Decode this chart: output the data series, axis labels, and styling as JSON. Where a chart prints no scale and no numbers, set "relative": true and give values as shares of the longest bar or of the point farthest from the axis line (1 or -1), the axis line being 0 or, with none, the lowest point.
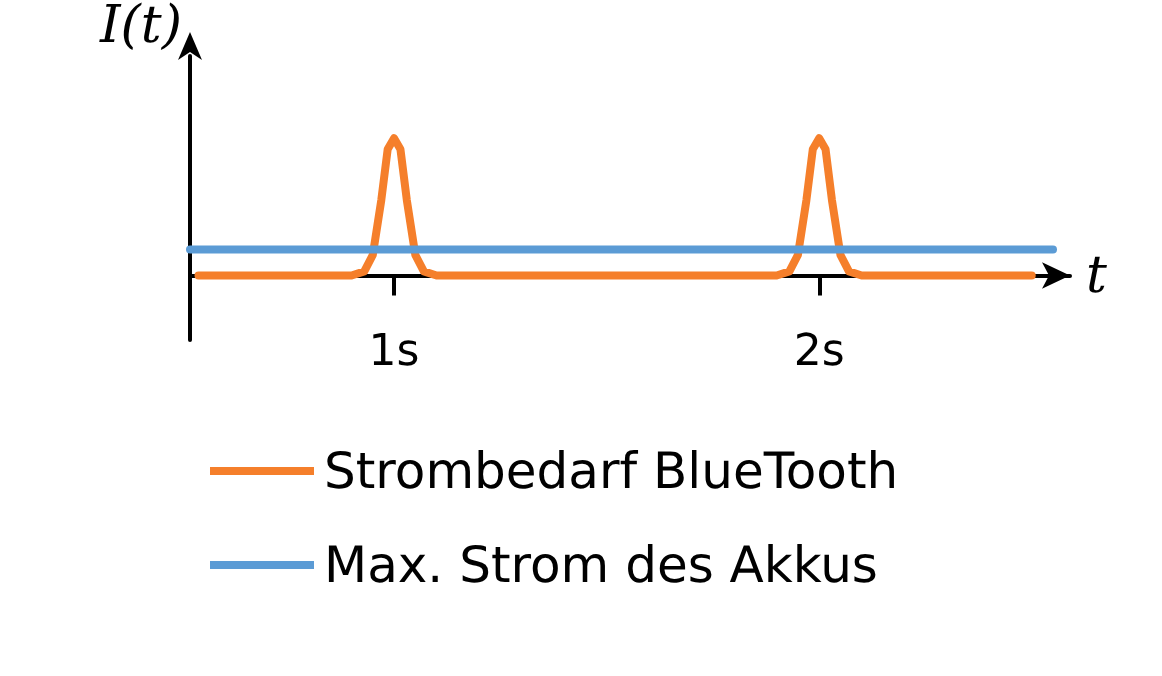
{
  "chart_data": {
    "type": "line",
    "relative": true,
    "xlabel": "t",
    "ylabel": "I(t)",
    "xlim": [
      0.52,
      2.59
    ],
    "xticks": [
      {
        "value": 1,
        "label": "1s"
      },
      {
        "value": 2,
        "label": "2s"
      }
    ],
    "series": [
      {
        "name": "Strombedarf BlueTooth",
        "color": "#f57f2b",
        "x": [
          0.54,
          0.9,
          0.93,
          0.95,
          0.97,
          0.985,
          1.0,
          1.015,
          1.03,
          1.05,
          1.07,
          1.1,
          1.9,
          1.93,
          1.95,
          1.97,
          1.985,
          2.0,
          2.015,
          2.03,
          2.05,
          2.07,
          2.1,
          2.5
        ],
        "values": [
          0,
          0,
          0.03,
          0.15,
          0.55,
          0.92,
          1,
          0.92,
          0.55,
          0.15,
          0.03,
          0,
          0,
          0.03,
          0.15,
          0.55,
          0.92,
          1,
          0.92,
          0.55,
          0.15,
          0.03,
          0,
          0
        ]
      },
      {
        "name": "Max. Strom des Akkus",
        "color": "#5b9bd5",
        "x": [
          0.52,
          2.55
        ],
        "values": [
          0.19,
          0.19
        ]
      }
    ],
    "legend": "bottom",
    "grid": false,
    "marker": "none",
    "line_style": "solid"
  }
}
